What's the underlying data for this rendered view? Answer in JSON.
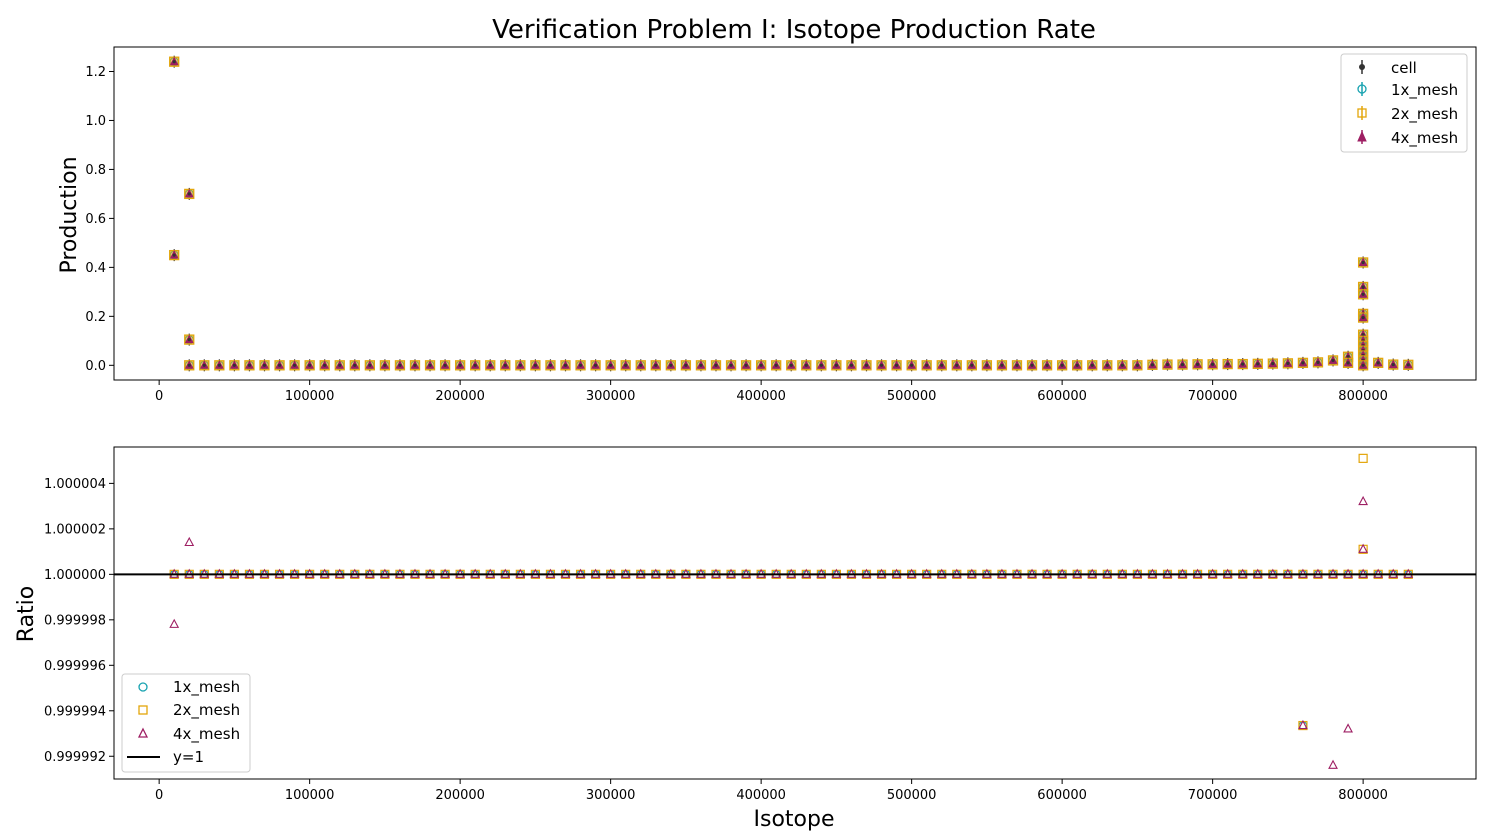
{
  "figure_title": "Verification Problem I: Isotope Production Rate",
  "colors": {
    "cell": "#333333",
    "mesh_1x": "#17a2b0",
    "mesh_2x": "#e3a60b",
    "mesh_4x": "#9e1f63",
    "ref_line": "#000000"
  },
  "chart_data": [
    {
      "type": "scatter",
      "title": "Verification Problem I: Isotope Production Rate",
      "xlabel": "",
      "ylabel": "Production",
      "xlim": [
        -30000,
        875000
      ],
      "ylim": [
        -0.06,
        1.3
      ],
      "x_ticks": [
        0,
        100000,
        200000,
        300000,
        400000,
        500000,
        600000,
        700000,
        800000
      ],
      "x_tick_labels": [
        "0",
        "100000",
        "200000",
        "300000",
        "400000",
        "500000",
        "600000",
        "700000",
        "800000"
      ],
      "y_ticks": [
        0.0,
        0.2,
        0.4,
        0.6,
        0.8,
        1.0,
        1.2
      ],
      "y_tick_labels": [
        "0.0",
        "0.2",
        "0.4",
        "0.6",
        "0.8",
        "1.0",
        "1.2"
      ],
      "legend_position": "top-right",
      "legend": [
        "cell",
        "1x_mesh",
        "2x_mesh",
        "4x_mesh"
      ],
      "series_note": "all four series overlap at the same values",
      "points": [
        [
          10000,
          1.24
        ],
        [
          10000,
          0.45
        ],
        [
          20000,
          0.7
        ],
        [
          20000,
          0.105
        ],
        [
          20000,
          0.0
        ],
        [
          30000,
          0.0
        ],
        [
          40000,
          0.0
        ],
        [
          50000,
          0.0
        ],
        [
          60000,
          0.0
        ],
        [
          70000,
          0.0
        ],
        [
          80000,
          0.0
        ],
        [
          90000,
          0.0
        ],
        [
          100000,
          0.0
        ],
        [
          110000,
          0.0
        ],
        [
          120000,
          0.0
        ],
        [
          130000,
          0.0
        ],
        [
          140000,
          0.0
        ],
        [
          150000,
          0.0
        ],
        [
          160000,
          0.0
        ],
        [
          170000,
          0.0
        ],
        [
          180000,
          0.0
        ],
        [
          190000,
          0.0
        ],
        [
          200000,
          0.0
        ],
        [
          210000,
          0.0
        ],
        [
          220000,
          0.0
        ],
        [
          230000,
          0.0
        ],
        [
          240000,
          0.0
        ],
        [
          250000,
          0.0
        ],
        [
          260000,
          0.0
        ],
        [
          270000,
          0.0
        ],
        [
          280000,
          0.0
        ],
        [
          290000,
          0.0
        ],
        [
          300000,
          0.0
        ],
        [
          310000,
          0.0
        ],
        [
          320000,
          0.0
        ],
        [
          330000,
          0.0
        ],
        [
          340000,
          0.0
        ],
        [
          350000,
          0.0
        ],
        [
          360000,
          0.0
        ],
        [
          370000,
          0.0
        ],
        [
          380000,
          0.0
        ],
        [
          390000,
          0.0
        ],
        [
          400000,
          0.0
        ],
        [
          410000,
          0.0
        ],
        [
          420000,
          0.0
        ],
        [
          430000,
          0.0
        ],
        [
          440000,
          0.0
        ],
        [
          450000,
          0.0
        ],
        [
          460000,
          0.0
        ],
        [
          470000,
          0.0
        ],
        [
          480000,
          0.0
        ],
        [
          490000,
          0.0
        ],
        [
          500000,
          0.0
        ],
        [
          510000,
          0.0
        ],
        [
          520000,
          0.0
        ],
        [
          530000,
          0.0
        ],
        [
          540000,
          0.0
        ],
        [
          550000,
          0.0
        ],
        [
          560000,
          0.0
        ],
        [
          570000,
          0.0
        ],
        [
          580000,
          0.0
        ],
        [
          590000,
          0.0
        ],
        [
          600000,
          0.0
        ],
        [
          610000,
          0.0
        ],
        [
          620000,
          0.0
        ],
        [
          630000,
          0.0
        ],
        [
          640000,
          0.0
        ],
        [
          650000,
          0.0
        ],
        [
          660000,
          0.002
        ],
        [
          670000,
          0.003
        ],
        [
          680000,
          0.003
        ],
        [
          690000,
          0.004
        ],
        [
          700000,
          0.004
        ],
        [
          710000,
          0.005
        ],
        [
          720000,
          0.005
        ],
        [
          730000,
          0.006
        ],
        [
          740000,
          0.007
        ],
        [
          750000,
          0.008
        ],
        [
          760000,
          0.01
        ],
        [
          770000,
          0.012
        ],
        [
          780000,
          0.02
        ],
        [
          790000,
          0.035
        ],
        [
          790000,
          0.01
        ],
        [
          800000,
          0.42
        ],
        [
          800000,
          0.32
        ],
        [
          800000,
          0.29
        ],
        [
          800000,
          0.21
        ],
        [
          800000,
          0.195
        ],
        [
          800000,
          0.125
        ],
        [
          800000,
          0.1
        ],
        [
          800000,
          0.08
        ],
        [
          800000,
          0.06
        ],
        [
          800000,
          0.04
        ],
        [
          800000,
          0.02
        ],
        [
          800000,
          0.0
        ],
        [
          810000,
          0.01
        ],
        [
          820000,
          0.003
        ],
        [
          830000,
          0.002
        ]
      ]
    },
    {
      "type": "scatter",
      "title": "",
      "xlabel": "Isotope",
      "ylabel": "Ratio",
      "xlim": [
        -30000,
        875000
      ],
      "ylim": [
        0.999991,
        1.0000056
      ],
      "x_ticks": [
        0,
        100000,
        200000,
        300000,
        400000,
        500000,
        600000,
        700000,
        800000
      ],
      "x_tick_labels": [
        "0",
        "100000",
        "200000",
        "300000",
        "400000",
        "500000",
        "600000",
        "700000",
        "800000"
      ],
      "y_ticks": [
        0.999992,
        0.999994,
        0.999996,
        0.999998,
        1.0,
        1.000002,
        1.000004
      ],
      "y_tick_labels": [
        "0.999992",
        "0.999994",
        "0.999996",
        "0.999998",
        "1.000000",
        "1.000002",
        "1.000004"
      ],
      "legend_position": "bottom-left",
      "legend": [
        "1x_mesh",
        "2x_mesh",
        "4x_mesh",
        "y=1"
      ],
      "reference_line": 1.0,
      "baseline_x_start": 10000,
      "baseline_x_end": 830000,
      "baseline_x_step": 10000,
      "outliers": {
        "1x_mesh": [
          [
            760000,
            0.99999335
          ]
        ],
        "2x_mesh": [
          [
            800000,
            1.0000051
          ],
          [
            800000,
            1.0000011
          ],
          [
            760000,
            0.99999335
          ]
        ],
        "4x_mesh": [
          [
            10000,
            0.9999978
          ],
          [
            20000,
            1.0000014
          ],
          [
            800000,
            1.0000032
          ],
          [
            800000,
            1.0000011
          ],
          [
            760000,
            0.99999335
          ],
          [
            790000,
            0.9999932
          ],
          [
            780000,
            0.9999916
          ]
        ]
      }
    }
  ]
}
